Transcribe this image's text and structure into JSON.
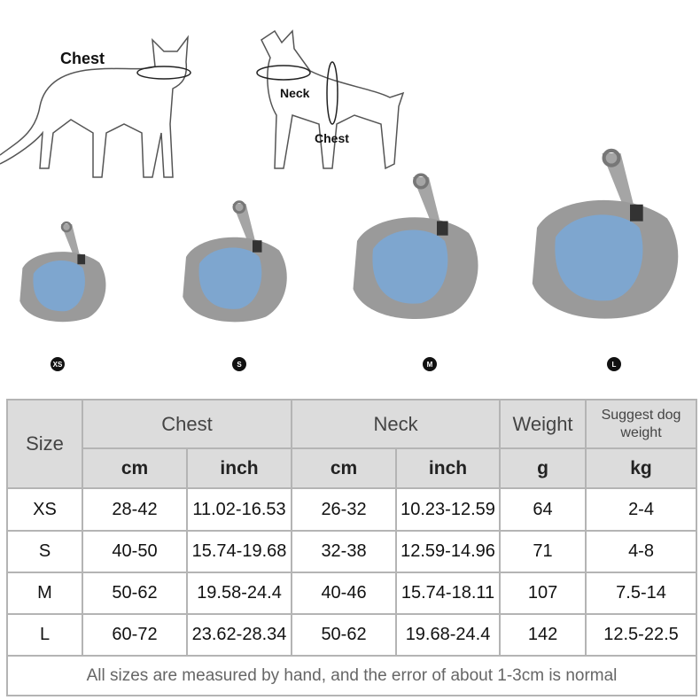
{
  "illustrations": {
    "cat_label": "Chest",
    "dog_neck_label": "Neck",
    "dog_chest_label": "Chest"
  },
  "sizes_badges": [
    "XS",
    "S",
    "M",
    "L"
  ],
  "colors": {
    "header_bg": "#dcdcdc",
    "border": "#b4b4b4",
    "harness_gray": "#9a9a9a",
    "harness_blue": "#7ea6cf"
  },
  "table": {
    "size_header": "Size",
    "groups": [
      "Chest",
      "Neck",
      "Weight",
      "Suggest dog weight"
    ],
    "units": [
      "cm",
      "inch",
      "cm",
      "inch",
      "g",
      "kg"
    ],
    "rows": [
      [
        "XS",
        "28-42",
        "11.02-16.53",
        "26-32",
        "10.23-12.59",
        "64",
        "2-4"
      ],
      [
        "S",
        "40-50",
        "15.74-19.68",
        "32-38",
        "12.59-14.96",
        "71",
        "4-8"
      ],
      [
        "M",
        "50-62",
        "19.58-24.4",
        "40-46",
        "15.74-18.11",
        "107",
        "7.5-14"
      ],
      [
        "L",
        "60-72",
        "23.62-28.34",
        "50-62",
        "19.68-24.4",
        "142",
        "12.5-22.5"
      ]
    ],
    "note": "All sizes are measured by hand, and the error of about 1-3cm is normal"
  }
}
